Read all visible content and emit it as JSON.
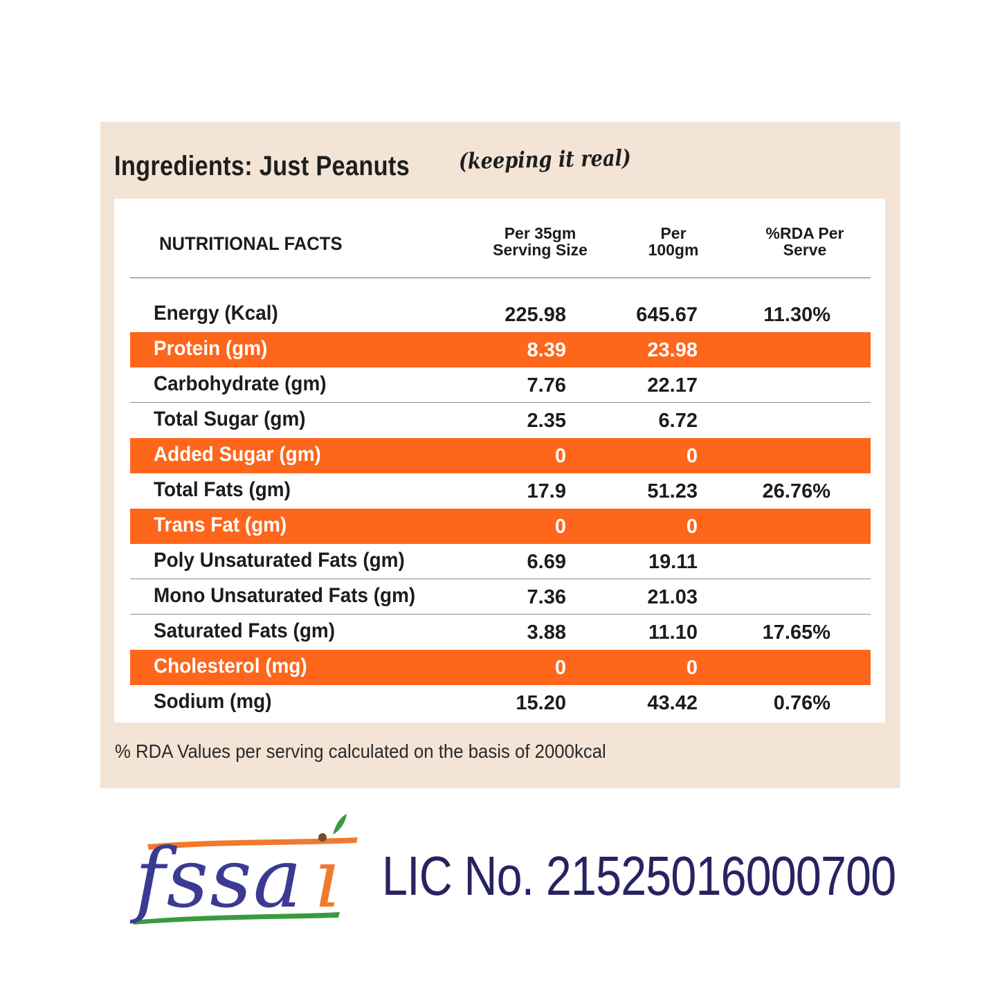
{
  "panel": {
    "ingredients": "Ingredients: Just Peanuts",
    "tagline": "(keeping it real)",
    "footnote": "% RDA Values per serving calculated on the basis of 2000kcal"
  },
  "table": {
    "title": "NUTRITIONAL FACTS",
    "headers": [
      [
        "Per 35gm",
        "Serving Size"
      ],
      [
        "Per",
        "100gm"
      ],
      [
        "%RDA Per",
        "Serve"
      ]
    ],
    "rows": [
      {
        "label": "Energy (Kcal)",
        "per_serving": "225.98",
        "per_100g": "645.67",
        "rda": "11.30%",
        "highlight": false
      },
      {
        "label": "Protein (gm)",
        "per_serving": "8.39",
        "per_100g": "23.98",
        "rda": "",
        "highlight": true
      },
      {
        "label": "Carbohydrate (gm)",
        "per_serving": "7.76",
        "per_100g": "22.17",
        "rda": "",
        "highlight": false
      },
      {
        "label": "Total Sugar (gm)",
        "per_serving": "2.35",
        "per_100g": "6.72",
        "rda": "",
        "highlight": false
      },
      {
        "label": "Added Sugar (gm)",
        "per_serving": "0",
        "per_100g": "0",
        "rda": "",
        "highlight": true
      },
      {
        "label": "Total Fats (gm)",
        "per_serving": "17.9",
        "per_100g": "51.23",
        "rda": "26.76%",
        "highlight": false
      },
      {
        "label": "Trans Fat (gm)",
        "per_serving": "0",
        "per_100g": "0",
        "rda": "",
        "highlight": true
      },
      {
        "label": "Poly Unsaturated Fats (gm)",
        "per_serving": "6.69",
        "per_100g": "19.11",
        "rda": "",
        "highlight": false
      },
      {
        "label": "Mono Unsaturated Fats (gm)",
        "per_serving": "7.36",
        "per_100g": "21.03",
        "rda": "",
        "highlight": false
      },
      {
        "label": "Saturated Fats (gm)",
        "per_serving": "3.88",
        "per_100g": "11.10",
        "rda": "17.65%",
        "highlight": false
      },
      {
        "label": "Cholesterol (mg)",
        "per_serving": "0",
        "per_100g": "0",
        "rda": "",
        "highlight": true
      },
      {
        "label": "Sodium (mg)",
        "per_serving": "15.20",
        "per_100g": "43.42",
        "rda": "0.76%",
        "highlight": false
      }
    ]
  },
  "license": {
    "logo_text": "fssai",
    "lic_text": "LIC No. 21525016000700"
  },
  "colors": {
    "panel_bg": "#f3e4d5",
    "highlight_row": "#fd661b",
    "lic_text": "#272363",
    "logo_blue": "#3b3a93",
    "logo_orange": "#ef7a2e",
    "logo_green": "#3a9a3f"
  }
}
